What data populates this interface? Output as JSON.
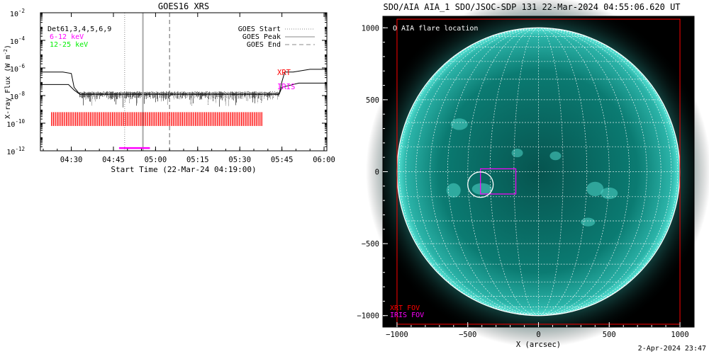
{
  "footer": {
    "timestamp": "2-Apr-2024 23:47"
  },
  "chart_data": [
    {
      "type": "line",
      "title": "GOES16 XRS",
      "xlabel": "Start Time (22-Mar-24 04:19:00)",
      "ylabel": "X-ray Flux (W m",
      "ylabel_sup": "-2",
      "ylabel_end": ")",
      "log_y": true,
      "ylim_exp": [
        -12,
        -2
      ],
      "xlim_min": [
        0,
        102
      ],
      "x_ticks": [
        {
          "min": 11,
          "label": "04:30"
        },
        {
          "min": 26,
          "label": "04:45"
        },
        {
          "min": 41,
          "label": "05:00"
        },
        {
          "min": 56,
          "label": "05:15"
        },
        {
          "min": 71,
          "label": "05:30"
        },
        {
          "min": 86,
          "label": "05:45"
        },
        {
          "min": 101,
          "label": "06:00"
        }
      ],
      "y_ticks": [
        -12,
        -10,
        -8,
        -6,
        -4,
        -2
      ],
      "legend_left": {
        "title": "Det61,3,4,5,6,9",
        "items": [
          {
            "label": "6-12 keV",
            "color": "#ff00ff"
          },
          {
            "label": "12-25 keV",
            "color": "#00ee00"
          }
        ]
      },
      "legend_right": [
        {
          "label": "GOES Start",
          "style": "dotted"
        },
        {
          "label": "GOES Peak",
          "style": "solid"
        },
        {
          "label": "GOES End",
          "style": "dashed"
        }
      ],
      "markers_min": {
        "goes_start": 30,
        "goes_peak": 36.5,
        "goes_end": 46
      },
      "series": [
        {
          "name": "",
          "points": [
            [
              0,
              -6.3
            ],
            [
              8,
              -6.3
            ],
            [
              11,
              -6.4
            ],
            [
              12,
              -7.4
            ],
            [
              14,
              -7.9
            ],
            [
              85,
              -7.9
            ],
            [
              86,
              -7.0
            ],
            [
              87,
              -6.3
            ],
            [
              90,
              -6.3
            ],
            [
              96,
              -6.1
            ],
            [
              102,
              -6.1
            ]
          ]
        },
        {
          "name": "",
          "points": [
            [
              0,
              -7.2
            ],
            [
              10,
              -7.2
            ],
            [
              12,
              -7.6
            ],
            [
              14,
              -7.9
            ],
            [
              85,
              -7.9
            ],
            [
              86,
              -7.4
            ],
            [
              88,
              -7.3
            ],
            [
              92,
              -7.1
            ],
            [
              102,
              -7.1
            ]
          ]
        }
      ],
      "noise_band_exp": [
        -7.8,
        -8.3
      ],
      "noise_band_min": [
        14,
        85
      ],
      "instrument_labels": [
        {
          "label": "XRT",
          "color": "#ff0000"
        },
        {
          "label": "IRIS",
          "color": "#ff00ff"
        }
      ],
      "xrt_coverage_min": [
        4,
        79
      ],
      "iris_coverage_min": [
        28,
        39
      ]
    },
    {
      "type": "image",
      "title": "SDO/AIA AIA_1 SDO/JSOC-SDP 131 22-Mar-2024 04:55:06.620 UT",
      "xlabel": "X (arcsec)",
      "xlim": [
        -1100,
        1100
      ],
      "ylim": [
        -1080,
        1080
      ],
      "x_ticks": [
        -1000,
        -500,
        0,
        500,
        1000
      ],
      "x_tick_labels": [
        "−1000",
        "−500",
        "0",
        "500",
        "1000"
      ],
      "y_ticks": [
        1000,
        500,
        0,
        -500,
        -1000
      ],
      "y_tick_labels": [
        "1000",
        "500",
        "0",
        "−500",
        "−1000"
      ],
      "solar_radius_arcsec": 1000,
      "legend": "O AIA flare location",
      "fov_labels": [
        {
          "label": "XRT FOV",
          "color": "#ff0000"
        },
        {
          "label": "IRIS FOV",
          "color": "#ff00ff"
        }
      ],
      "xrt_fov_arcsec": [
        -1000,
        -1060,
        1000,
        1060
      ],
      "iris_fov_arcsec": [
        -410,
        -155,
        -160,
        20
      ],
      "flare_location_arcsec": [
        -410,
        -90
      ],
      "flare_circle_radius_arcsec": 90,
      "colors": {
        "disk": "#0b7b72",
        "limb": "#59e6d8",
        "grid": "#ffffff",
        "background": "#000000"
      }
    }
  ]
}
